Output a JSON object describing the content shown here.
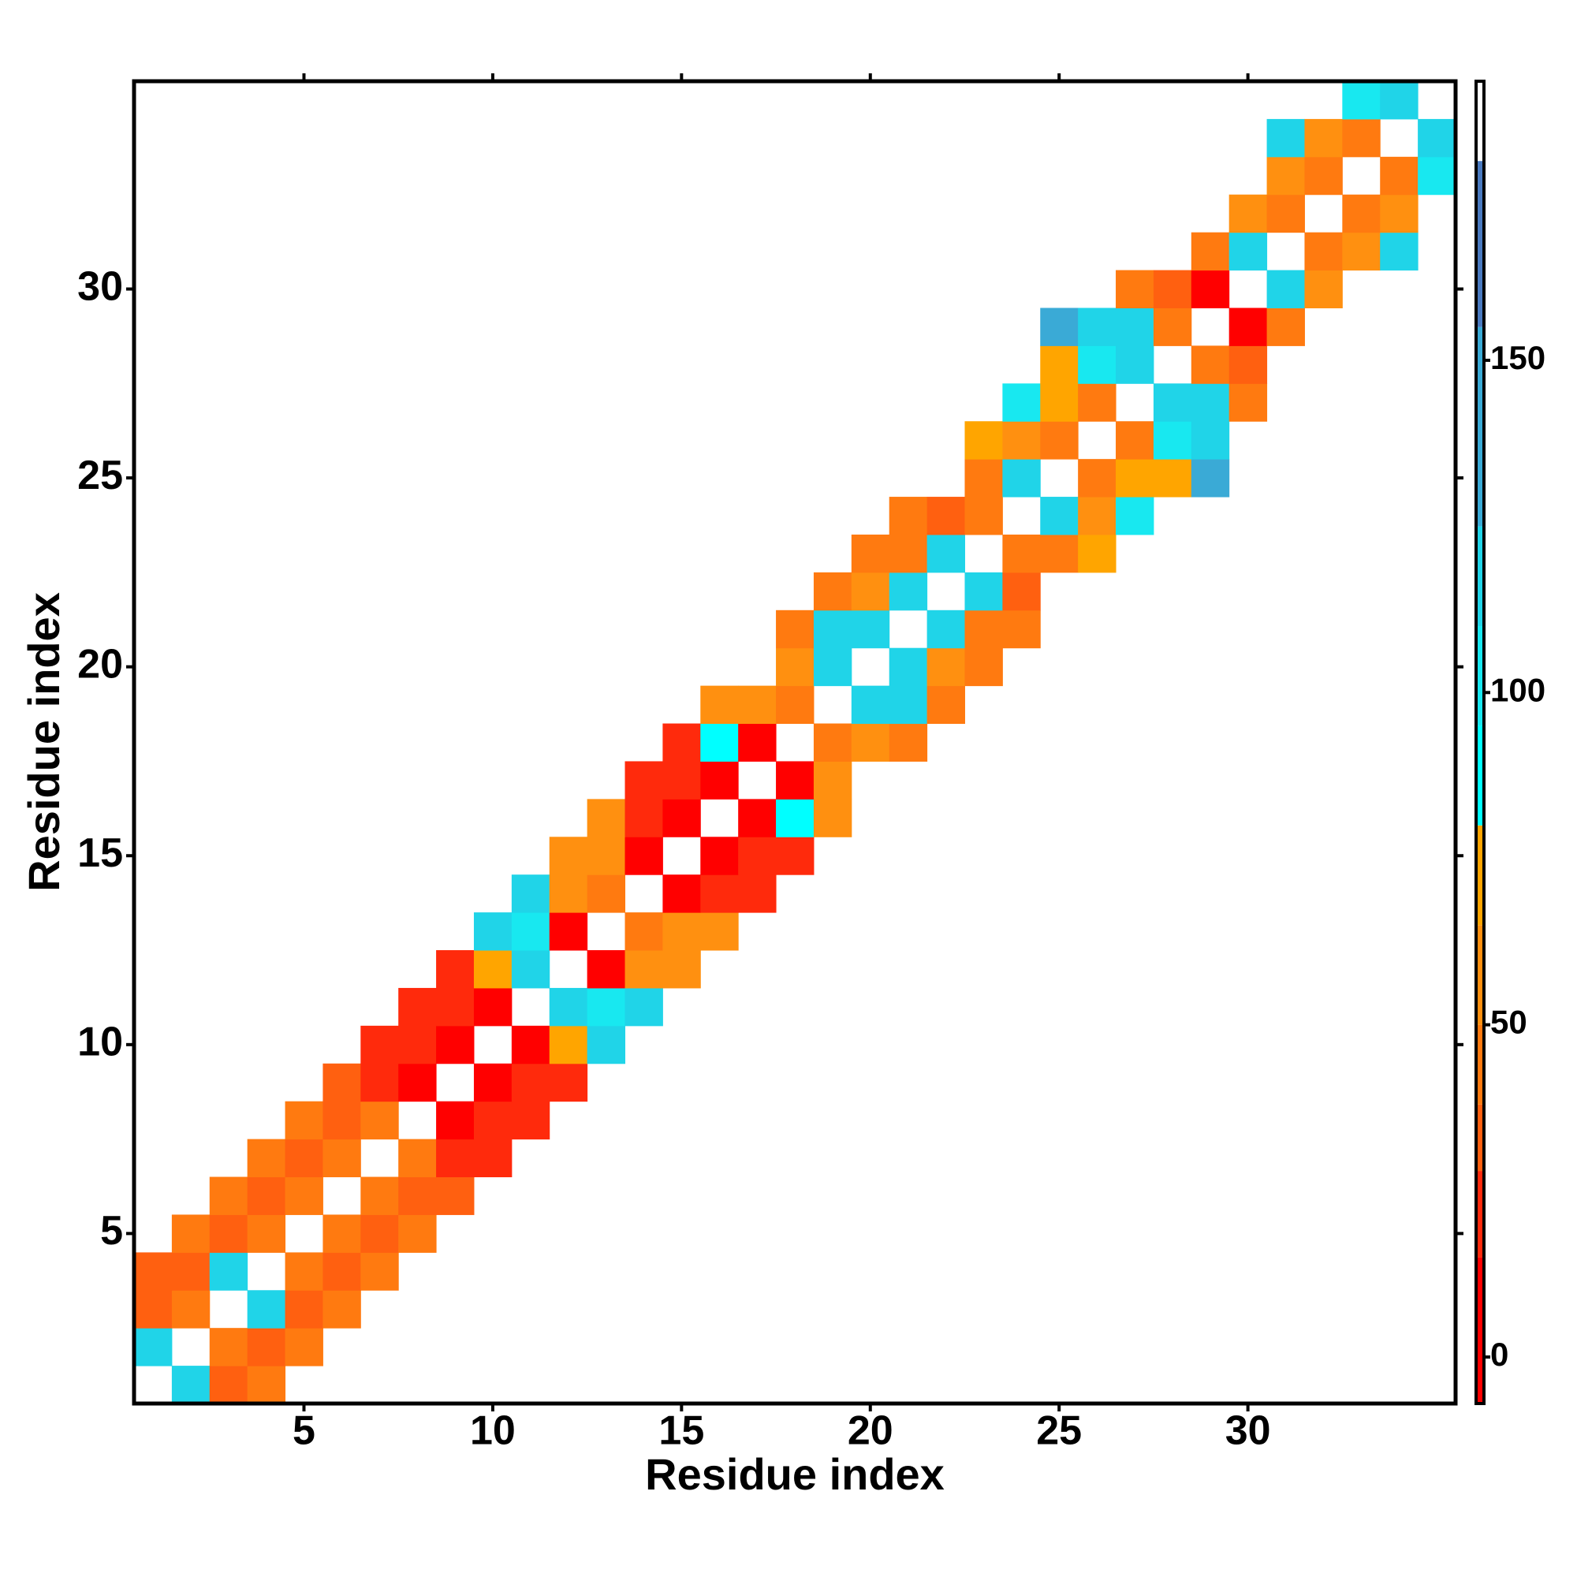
{
  "chart_data": {
    "type": "heatmap",
    "x_label": "Residue index",
    "y_label": "Residue index",
    "xlim": [
      0.5,
      35.5
    ],
    "ylim": [
      0.5,
      35.5
    ],
    "xticks": [
      5,
      10,
      15,
      20,
      25,
      30
    ],
    "yticks": [
      5,
      10,
      15,
      20,
      25,
      30
    ],
    "colorbar": {
      "lim": [
        -7,
        192
      ],
      "ticks": [
        0,
        50,
        100,
        150
      ],
      "bins": [
        -7,
        15,
        28,
        38,
        50,
        65,
        80,
        95,
        110,
        125,
        155,
        180,
        192
      ],
      "colors": [
        "#ff0000",
        "#ff2a0c",
        "#ff6010",
        "#ff7a10",
        "#ff9010",
        "#ffa500",
        "#00ffff",
        "#18e8f0",
        "#20d4e8",
        "#3aaad6",
        "#4a7ac0",
        "#ffffff"
      ]
    },
    "cells": [
      [
        2,
        1,
        115
      ],
      [
        3,
        1,
        35
      ],
      [
        4,
        1,
        42
      ],
      [
        1,
        2,
        115
      ],
      [
        3,
        2,
        42
      ],
      [
        4,
        2,
        35
      ],
      [
        5,
        2,
        42
      ],
      [
        1,
        3,
        35
      ],
      [
        2,
        3,
        42
      ],
      [
        4,
        3,
        115
      ],
      [
        5,
        3,
        35
      ],
      [
        6,
        3,
        42
      ],
      [
        1,
        4,
        35
      ],
      [
        2,
        4,
        35
      ],
      [
        3,
        4,
        115
      ],
      [
        5,
        4,
        42
      ],
      [
        6,
        4,
        35
      ],
      [
        7,
        4,
        42
      ],
      [
        2,
        5,
        42
      ],
      [
        3,
        5,
        35
      ],
      [
        4,
        5,
        42
      ],
      [
        6,
        5,
        42
      ],
      [
        7,
        5,
        35
      ],
      [
        8,
        5,
        42
      ],
      [
        3,
        6,
        42
      ],
      [
        4,
        6,
        35
      ],
      [
        5,
        6,
        42
      ],
      [
        7,
        6,
        42
      ],
      [
        8,
        6,
        35
      ],
      [
        9,
        6,
        35
      ],
      [
        4,
        7,
        42
      ],
      [
        5,
        7,
        35
      ],
      [
        6,
        7,
        42
      ],
      [
        8,
        7,
        42
      ],
      [
        9,
        7,
        22
      ],
      [
        10,
        7,
        22
      ],
      [
        5,
        8,
        42
      ],
      [
        6,
        8,
        35
      ],
      [
        7,
        8,
        42
      ],
      [
        9,
        8,
        10
      ],
      [
        10,
        8,
        22
      ],
      [
        11,
        8,
        22
      ],
      [
        6,
        9,
        35
      ],
      [
        7,
        9,
        22
      ],
      [
        8,
        9,
        10
      ],
      [
        10,
        9,
        10
      ],
      [
        11,
        9,
        22
      ],
      [
        12,
        9,
        22
      ],
      [
        7,
        10,
        22
      ],
      [
        8,
        10,
        22
      ],
      [
        9,
        10,
        10
      ],
      [
        11,
        10,
        10
      ],
      [
        12,
        10,
        72
      ],
      [
        13,
        10,
        115
      ],
      [
        8,
        11,
        22
      ],
      [
        9,
        11,
        22
      ],
      [
        10,
        11,
        10
      ],
      [
        12,
        11,
        115
      ],
      [
        13,
        11,
        100
      ],
      [
        14,
        11,
        115
      ],
      [
        9,
        12,
        22
      ],
      [
        10,
        12,
        72
      ],
      [
        11,
        12,
        115
      ],
      [
        13,
        12,
        10
      ],
      [
        14,
        12,
        58
      ],
      [
        15,
        12,
        58
      ],
      [
        10,
        13,
        115
      ],
      [
        11,
        13,
        100
      ],
      [
        12,
        13,
        10
      ],
      [
        14,
        13,
        42
      ],
      [
        15,
        13,
        58
      ],
      [
        16,
        13,
        58
      ],
      [
        11,
        14,
        115
      ],
      [
        12,
        14,
        58
      ],
      [
        13,
        14,
        42
      ],
      [
        15,
        14,
        10
      ],
      [
        16,
        14,
        22
      ],
      [
        17,
        14,
        22
      ],
      [
        12,
        15,
        58
      ],
      [
        13,
        15,
        58
      ],
      [
        14,
        15,
        10
      ],
      [
        16,
        15,
        10
      ],
      [
        17,
        15,
        22
      ],
      [
        18,
        15,
        22
      ],
      [
        13,
        16,
        58
      ],
      [
        14,
        16,
        22
      ],
      [
        15,
        16,
        10
      ],
      [
        17,
        16,
        10
      ],
      [
        18,
        16,
        88
      ],
      [
        19,
        16,
        58
      ],
      [
        14,
        17,
        22
      ],
      [
        15,
        17,
        22
      ],
      [
        16,
        17,
        10
      ],
      [
        18,
        17,
        10
      ],
      [
        19,
        17,
        58
      ],
      [
        15,
        18,
        22
      ],
      [
        16,
        18,
        88
      ],
      [
        17,
        18,
        10
      ],
      [
        19,
        18,
        42
      ],
      [
        20,
        18,
        58
      ],
      [
        21,
        18,
        42
      ],
      [
        16,
        19,
        58
      ],
      [
        17,
        19,
        58
      ],
      [
        18,
        19,
        42
      ],
      [
        20,
        19,
        115
      ],
      [
        21,
        19,
        115
      ],
      [
        22,
        19,
        42
      ],
      [
        18,
        20,
        58
      ],
      [
        19,
        20,
        115
      ],
      [
        21,
        20,
        115
      ],
      [
        22,
        20,
        58
      ],
      [
        23,
        20,
        42
      ],
      [
        18,
        21,
        42
      ],
      [
        19,
        21,
        115
      ],
      [
        20,
        21,
        115
      ],
      [
        22,
        21,
        115
      ],
      [
        23,
        21,
        42
      ],
      [
        24,
        21,
        42
      ],
      [
        19,
        22,
        42
      ],
      [
        20,
        22,
        58
      ],
      [
        21,
        22,
        115
      ],
      [
        23,
        22,
        115
      ],
      [
        24,
        22,
        35
      ],
      [
        20,
        23,
        42
      ],
      [
        21,
        23,
        42
      ],
      [
        22,
        23,
        115
      ],
      [
        24,
        23,
        42
      ],
      [
        25,
        23,
        42
      ],
      [
        26,
        23,
        72
      ],
      [
        21,
        24,
        42
      ],
      [
        22,
        24,
        35
      ],
      [
        23,
        24,
        42
      ],
      [
        25,
        24,
        115
      ],
      [
        26,
        24,
        58
      ],
      [
        27,
        24,
        100
      ],
      [
        23,
        25,
        42
      ],
      [
        24,
        25,
        115
      ],
      [
        26,
        25,
        42
      ],
      [
        27,
        25,
        72
      ],
      [
        28,
        25,
        72
      ],
      [
        29,
        25,
        130
      ],
      [
        23,
        26,
        72
      ],
      [
        24,
        26,
        58
      ],
      [
        25,
        26,
        42
      ],
      [
        27,
        26,
        42
      ],
      [
        28,
        26,
        100
      ],
      [
        29,
        26,
        115
      ],
      [
        24,
        27,
        100
      ],
      [
        25,
        27,
        72
      ],
      [
        26,
        27,
        42
      ],
      [
        28,
        27,
        115
      ],
      [
        29,
        27,
        115
      ],
      [
        30,
        27,
        42
      ],
      [
        25,
        28,
        72
      ],
      [
        26,
        28,
        100
      ],
      [
        27,
        28,
        115
      ],
      [
        29,
        28,
        42
      ],
      [
        30,
        28,
        35
      ],
      [
        25,
        29,
        130
      ],
      [
        26,
        29,
        115
      ],
      [
        27,
        29,
        115
      ],
      [
        28,
        29,
        42
      ],
      [
        30,
        29,
        10
      ],
      [
        31,
        29,
        42
      ],
      [
        27,
        30,
        42
      ],
      [
        28,
        30,
        35
      ],
      [
        29,
        30,
        10
      ],
      [
        31,
        30,
        115
      ],
      [
        32,
        30,
        58
      ],
      [
        29,
        31,
        42
      ],
      [
        30,
        31,
        115
      ],
      [
        32,
        31,
        42
      ],
      [
        33,
        31,
        58
      ],
      [
        34,
        31,
        115
      ],
      [
        30,
        32,
        58
      ],
      [
        31,
        32,
        42
      ],
      [
        33,
        32,
        42
      ],
      [
        34,
        32,
        58
      ],
      [
        31,
        33,
        58
      ],
      [
        32,
        33,
        42
      ],
      [
        34,
        33,
        42
      ],
      [
        35,
        33,
        100
      ],
      [
        31,
        34,
        115
      ],
      [
        32,
        34,
        58
      ],
      [
        33,
        34,
        42
      ],
      [
        35,
        34,
        115
      ],
      [
        33,
        35,
        100
      ],
      [
        34,
        35,
        115
      ]
    ]
  }
}
